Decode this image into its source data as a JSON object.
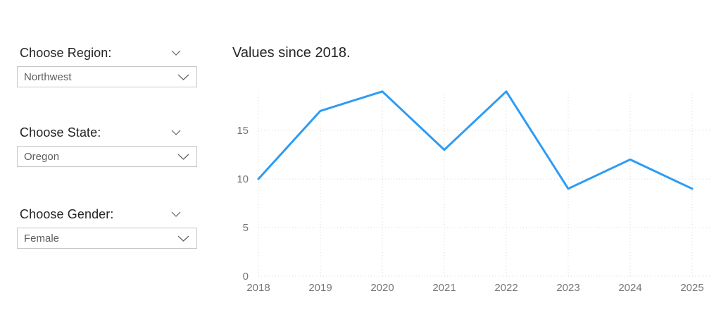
{
  "slicers": [
    {
      "label": "Choose Region:",
      "value": "Northwest"
    },
    {
      "label": "Choose State:",
      "value": "Oregon"
    },
    {
      "label": "Choose Gender:",
      "value": "Female"
    }
  ],
  "chart_data": {
    "type": "line",
    "title": "Values since 2018.",
    "categories": [
      "2018",
      "2019",
      "2020",
      "2021",
      "2022",
      "2023",
      "2024",
      "2025"
    ],
    "values": [
      10,
      17,
      19,
      13,
      19,
      9,
      12,
      9
    ],
    "xlabel": "",
    "ylabel": "",
    "ylim": [
      0,
      19
    ],
    "yticks": [
      0,
      5,
      10,
      15
    ],
    "grid": "dotted",
    "legend": "none"
  },
  "colors": {
    "line": "#2D9CF4",
    "axis_text": "#767676",
    "title_text": "#252423",
    "gridline": "#DBDBDB",
    "slicer_label_text": "#252423",
    "dropdown_text": "#605E5C",
    "dropdown_border": "#C8C6C4",
    "background": "#FFFFFF"
  }
}
